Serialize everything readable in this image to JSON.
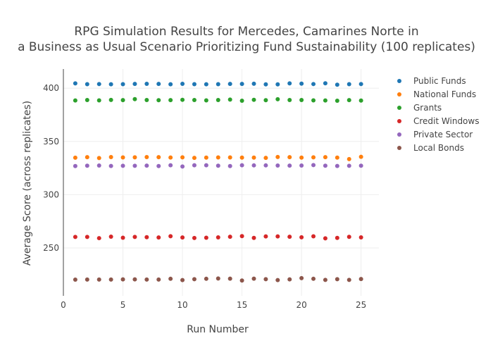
{
  "chart_data": {
    "type": "scatter",
    "title_lines": [
      "RPG Simulation Results for Mercedes, Camarines Norte in",
      "a Business as Usual Scenario Prioritizing Fund Sustainability (100 replicates)"
    ],
    "xlabel": "Run Number",
    "ylabel": "Average Score (across replicates)",
    "xlim": [
      0,
      26.5
    ],
    "ylim": [
      205,
      418
    ],
    "xticks": [
      0,
      5,
      10,
      15,
      20,
      25
    ],
    "yticks": [
      250,
      300,
      350,
      400
    ],
    "grid": true,
    "legend_position": "top-right",
    "x": [
      1,
      2,
      3,
      4,
      5,
      6,
      7,
      8,
      9,
      10,
      11,
      12,
      13,
      14,
      15,
      16,
      17,
      18,
      19,
      20,
      21,
      22,
      23,
      24,
      25
    ],
    "series": [
      {
        "name": "Public Funds",
        "color": "#1f77b4",
        "values": [
          404.5,
          403.8,
          403.9,
          403.7,
          403.8,
          404.0,
          404.1,
          404.0,
          403.7,
          404.1,
          403.8,
          403.7,
          403.8,
          404.0,
          404.0,
          404.2,
          403.6,
          403.6,
          404.5,
          404.3,
          403.9,
          404.6,
          403.3,
          403.8,
          403.9
        ]
      },
      {
        "name": "National Funds",
        "color": "#ff7f0e",
        "values": [
          334.7,
          335.2,
          334.4,
          335.3,
          335.0,
          335.1,
          335.3,
          335.2,
          334.9,
          335.1,
          334.6,
          334.8,
          335.0,
          335.0,
          334.8,
          334.8,
          334.6,
          335.4,
          335.2,
          334.8,
          335.1,
          335.2,
          334.8,
          333.4,
          335.6
        ]
      },
      {
        "name": "Grants",
        "color": "#2ca02c",
        "values": [
          388.5,
          388.9,
          388.6,
          389.0,
          388.8,
          389.7,
          388.9,
          388.7,
          388.8,
          389.1,
          388.9,
          388.6,
          388.9,
          389.3,
          388.2,
          389.1,
          388.7,
          389.6,
          388.9,
          388.9,
          388.6,
          388.5,
          388.2,
          388.8,
          388.4
        ]
      },
      {
        "name": "Credit Windows",
        "color": "#d62728",
        "values": [
          260.3,
          260.3,
          259.2,
          260.6,
          259.6,
          260.3,
          260.1,
          259.8,
          261.0,
          259.8,
          259.3,
          259.6,
          259.9,
          260.5,
          261.1,
          259.4,
          260.8,
          260.8,
          260.5,
          260.0,
          260.9,
          259.0,
          259.4,
          260.4,
          259.9
        ]
      },
      {
        "name": "Private Sector",
        "color": "#9467bd",
        "values": [
          326.9,
          327.2,
          327.4,
          327.0,
          327.1,
          327.1,
          327.3,
          326.9,
          327.6,
          326.5,
          327.6,
          327.6,
          327.2,
          326.9,
          327.6,
          327.5,
          327.5,
          327.4,
          327.3,
          327.4,
          327.8,
          327.2,
          327.0,
          327.1,
          327.2
        ]
      },
      {
        "name": "Local Bonds",
        "color": "#8c564b",
        "values": [
          220.2,
          220.3,
          220.3,
          220.3,
          220.5,
          220.5,
          220.3,
          220.3,
          221.0,
          219.8,
          220.6,
          221.0,
          221.3,
          221.1,
          219.4,
          221.1,
          220.6,
          219.8,
          220.5,
          221.6,
          221.0,
          220.0,
          220.6,
          220.0,
          220.8
        ]
      }
    ]
  }
}
